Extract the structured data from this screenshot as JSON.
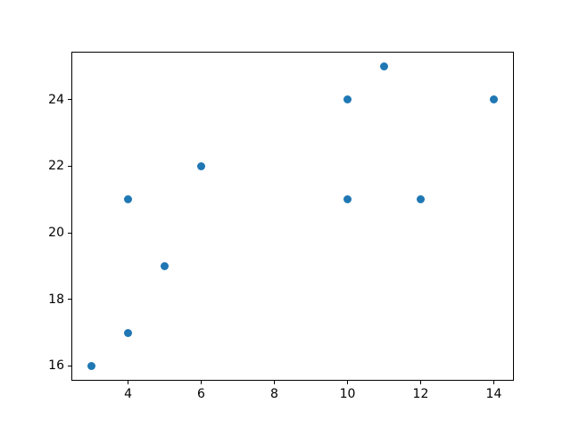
{
  "figure": {
    "background": "#ffffff",
    "spine_color": "#000000",
    "tick_color": "#000000",
    "tick_label_color": "#000000"
  },
  "chart_data": {
    "type": "scatter",
    "title": "",
    "xlabel": "",
    "ylabel": "",
    "grid": false,
    "legend": null,
    "marker_color": "#1f77b4",
    "xlim": [
      2.45,
      14.55
    ],
    "ylim": [
      15.55,
      25.45
    ],
    "xticks": [
      4,
      6,
      8,
      10,
      12,
      14
    ],
    "yticks": [
      16,
      18,
      20,
      22,
      24
    ],
    "points": [
      {
        "x": 3,
        "y": 16
      },
      {
        "x": 4,
        "y": 17
      },
      {
        "x": 4,
        "y": 21
      },
      {
        "x": 5,
        "y": 19
      },
      {
        "x": 6,
        "y": 22
      },
      {
        "x": 10,
        "y": 21
      },
      {
        "x": 10,
        "y": 24
      },
      {
        "x": 11,
        "y": 25
      },
      {
        "x": 12,
        "y": 21
      },
      {
        "x": 14,
        "y": 24
      }
    ]
  }
}
